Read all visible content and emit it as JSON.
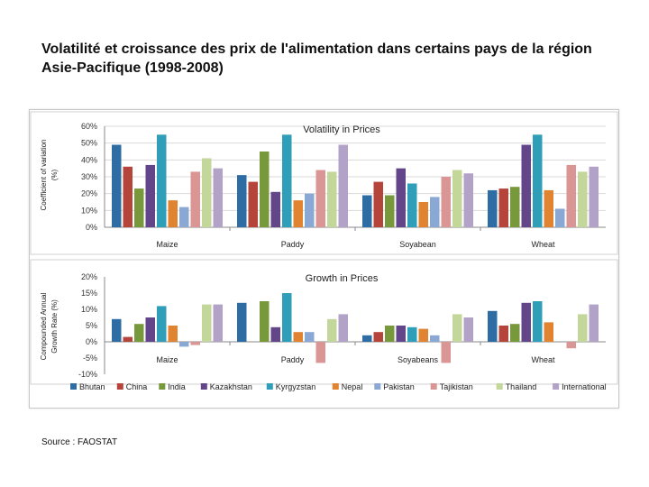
{
  "slide": {
    "title": "Volatilité et croissance des prix de l'alimentation dans certains pays de la région Asie-Pacifique (1998-2008)",
    "source": "Source : FAOSTAT"
  },
  "legend": {
    "placement": "bottom",
    "series_names": [
      "Bhutan",
      "China",
      "India",
      "Kazakhstan",
      "Kyrgyzstan",
      "Nepal",
      "Pakistan",
      "Tajikistan",
      "Thailand",
      "International"
    ],
    "colors": [
      "#2e6da4",
      "#b5443b",
      "#77993b",
      "#634689",
      "#2f9eb8",
      "#e08432",
      "#8aa8d4",
      "#d99694",
      "#c4d79b",
      "#b3a2c7"
    ]
  },
  "chart_data": [
    {
      "type": "bar",
      "title": "Volatility in Prices",
      "ylabel": "Coefficient of variation (%)",
      "ylim": [
        0,
        60
      ],
      "yticks": [
        "0%",
        "10%",
        "20%",
        "30%",
        "40%",
        "50%",
        "60%"
      ],
      "grid": true,
      "categories": [
        "Maize",
        "Paddy",
        "Soyabean",
        "Wheat"
      ],
      "series": [
        {
          "name": "Bhutan",
          "values": [
            49,
            31,
            19,
            22
          ]
        },
        {
          "name": "China",
          "values": [
            36,
            27,
            27,
            23
          ]
        },
        {
          "name": "India",
          "values": [
            23,
            45,
            19,
            24
          ]
        },
        {
          "name": "Kazakhstan",
          "values": [
            37,
            21,
            35,
            49
          ]
        },
        {
          "name": "Kyrgyzstan",
          "values": [
            55,
            55,
            26,
            55
          ]
        },
        {
          "name": "Nepal",
          "values": [
            16,
            16,
            15,
            22
          ]
        },
        {
          "name": "Pakistan",
          "values": [
            12,
            20,
            18,
            11
          ]
        },
        {
          "name": "Tajikistan",
          "values": [
            33,
            34,
            30,
            37
          ]
        },
        {
          "name": "Thailand",
          "values": [
            41,
            33,
            34,
            33
          ]
        },
        {
          "name": "International",
          "values": [
            35,
            49,
            32,
            36
          ]
        }
      ]
    },
    {
      "type": "bar",
      "title": "Growth in Prices",
      "ylabel": "Compounded Annual Growth Rate (%)",
      "ylim": [
        -10,
        20
      ],
      "yticks": [
        "-10%",
        "-5%",
        "0%",
        "5%",
        "10%",
        "15%",
        "20%"
      ],
      "grid": false,
      "categories": [
        "Maize",
        "Paddy",
        "Soyabeans",
        "Wheat"
      ],
      "series": [
        {
          "name": "Bhutan",
          "values": [
            7,
            12,
            2,
            9.5
          ]
        },
        {
          "name": "China",
          "values": [
            1.5,
            0,
            3,
            5
          ]
        },
        {
          "name": "India",
          "values": [
            5.5,
            12.5,
            5,
            5.5
          ]
        },
        {
          "name": "Kazakhstan",
          "values": [
            7.5,
            4.5,
            5,
            12
          ]
        },
        {
          "name": "Kyrgyzstan",
          "values": [
            11,
            15,
            4.5,
            12.5
          ]
        },
        {
          "name": "Nepal",
          "values": [
            5,
            3,
            4,
            6
          ]
        },
        {
          "name": "Pakistan",
          "values": [
            -1.5,
            3,
            2,
            0
          ]
        },
        {
          "name": "Tajikistan",
          "values": [
            -1,
            -6.5,
            -6.5,
            -2
          ]
        },
        {
          "name": "Thailand",
          "values": [
            11.5,
            7,
            8.5,
            8.5
          ]
        },
        {
          "name": "International",
          "values": [
            11.5,
            8.5,
            7.5,
            11.5
          ]
        }
      ]
    }
  ]
}
